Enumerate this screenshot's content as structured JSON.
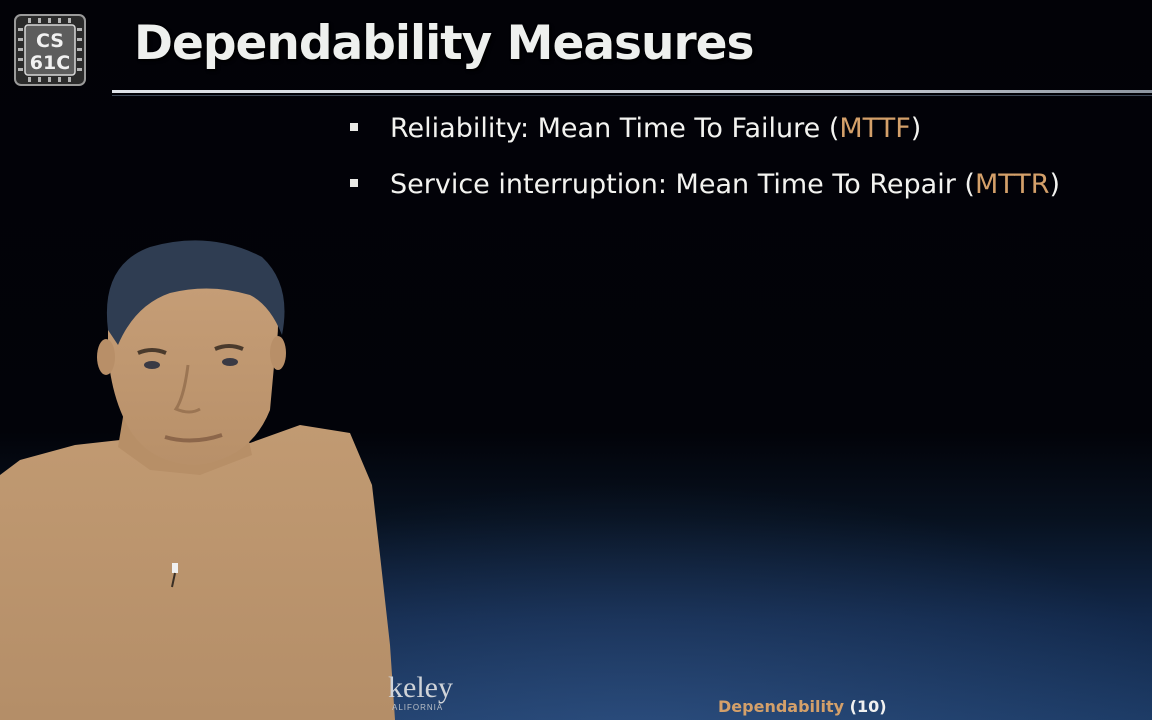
{
  "logo": {
    "line1": "CS",
    "line2": "61C"
  },
  "title": "Dependability Measures",
  "bullets": [
    {
      "before": "Reliability: Mean Time To Failure (",
      "acronym": "MTTF",
      "after": ")"
    },
    {
      "before": "Service interruption: Mean Time To Repair (",
      "acronym": "MTTR",
      "after": ")"
    }
  ],
  "branding": {
    "wordmark": "keley",
    "subline": "ALIFORNIA"
  },
  "footer": {
    "topic": "Dependability",
    "page": " (10)"
  },
  "colors": {
    "accent": "#d4a06a",
    "text": "#f3f3f0",
    "background": "#020207"
  }
}
